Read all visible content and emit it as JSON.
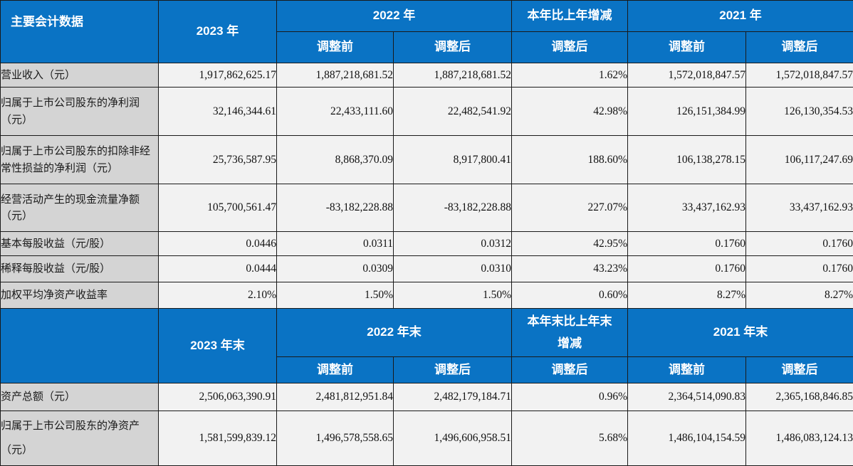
{
  "colors": {
    "header_blue": "#0a73c4",
    "label_gray": "#d4d4d4",
    "cell_bg": "#f2f2f2",
    "border": "#1a1a1a",
    "header_text": "#ffffff",
    "body_text": "#1a1a1a"
  },
  "table": {
    "section1": {
      "corner_label": "主要会计数据",
      "year_current": "2023 年",
      "year_prev": "2022 年",
      "change_label": "本年比上年增减",
      "year_prev2": "2021 年",
      "sub_headers": [
        "调整前",
        "调整后",
        "调整后",
        "调整前",
        "调整后"
      ],
      "rows": [
        {
          "label": "营业收入（元）",
          "values": [
            "1,917,862,625.17",
            "1,887,218,681.52",
            "1,887,218,681.52",
            "1.62%",
            "1,572,018,847.57",
            "1,572,018,847.57"
          ]
        },
        {
          "label": "归属于上市公司股东的净利润（元）",
          "values": [
            "32,146,344.61",
            "22,433,111.60",
            "22,482,541.92",
            "42.98%",
            "126,151,384.99",
            "126,130,354.53"
          ]
        },
        {
          "label": "归属于上市公司股东的扣除非经常性损益的净利润（元）",
          "values": [
            "25,736,587.95",
            "8,868,370.09",
            "8,917,800.41",
            "188.60%",
            "106,138,278.15",
            "106,117,247.69"
          ]
        },
        {
          "label": "经营活动产生的现金流量净额（元）",
          "values": [
            "105,700,561.47",
            "-83,182,228.88",
            "-83,182,228.88",
            "227.07%",
            "33,437,162.93",
            "33,437,162.93"
          ]
        },
        {
          "label": "基本每股收益（元/股）",
          "values": [
            "0.0446",
            "0.0311",
            "0.0312",
            "42.95%",
            "0.1760",
            "0.1760"
          ]
        },
        {
          "label": "稀释每股收益（元/股）",
          "values": [
            "0.0444",
            "0.0309",
            "0.0310",
            "43.23%",
            "0.1760",
            "0.1760"
          ]
        },
        {
          "label": "加权平均净资产收益率",
          "values": [
            "2.10%",
            "1.50%",
            "1.50%",
            "0.60%",
            "8.27%",
            "8.27%"
          ]
        }
      ]
    },
    "section2": {
      "corner_label": "",
      "year_current": "2023 年末",
      "year_prev": "2022 年末",
      "change_label": "本年末比上年末增减",
      "year_prev2": "2021 年末",
      "sub_headers": [
        "调整前",
        "调整后",
        "调整后",
        "调整前",
        "调整后"
      ],
      "rows": [
        {
          "label": "资产总额（元）",
          "values": [
            "2,506,063,390.91",
            "2,481,812,951.84",
            "2,482,179,184.71",
            "0.96%",
            "2,364,514,090.83",
            "2,365,168,846.85"
          ]
        },
        {
          "label": "归属于上市公司股东的净资产（元）",
          "values": [
            "1,581,599,839.12",
            "1,496,578,558.65",
            "1,496,606,958.51",
            "5.68%",
            "1,486,104,154.59",
            "1,486,083,124.13"
          ]
        }
      ]
    }
  }
}
